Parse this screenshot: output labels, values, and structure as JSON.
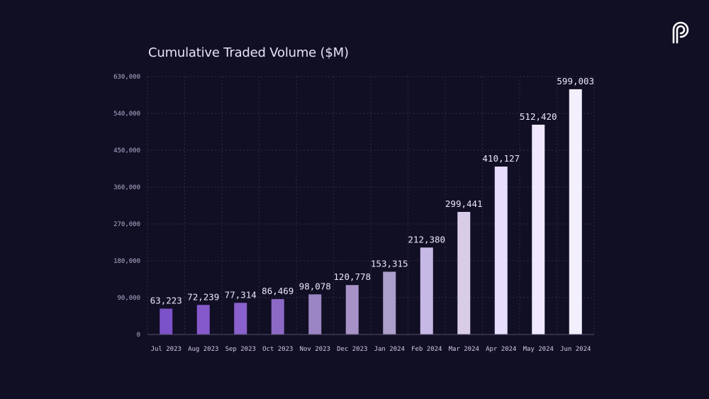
{
  "brand": {
    "logo": "pyth-logo-icon"
  },
  "chart_data": {
    "type": "bar",
    "title": "Cumulative Traded Volume ($M)",
    "xlabel": "",
    "ylabel": "",
    "categories": [
      "Jul 2023",
      "Aug 2023",
      "Sep 2023",
      "Oct 2023",
      "Nov 2023",
      "Dec 2023",
      "Jan 2024",
      "Feb 2024",
      "Mar 2024",
      "Apr 2024",
      "May 2024",
      "Jun 2024"
    ],
    "values": [
      63223,
      72239,
      77314,
      86469,
      98078,
      120778,
      153315,
      212380,
      299441,
      410127,
      512420,
      599003
    ],
    "value_labels": [
      "63,223",
      "72,239",
      "77,314",
      "86,469",
      "98,078",
      "120,778",
      "153,315",
      "212,380",
      "299,441",
      "410,127",
      "512,420",
      "599,003"
    ],
    "ylim": [
      0,
      630000
    ],
    "yticks": [
      0,
      90000,
      180000,
      270000,
      360000,
      450000,
      540000,
      630000
    ],
    "ytick_labels": [
      "0",
      "90,000",
      "180,000",
      "270,000",
      "360,000",
      "450,000",
      "540,000",
      "630,000"
    ],
    "bar_colors": [
      "#7c52c8",
      "#8559cc",
      "#8a61cc",
      "#8d69c6",
      "#9b85c4",
      "#a692c6",
      "#ad9fcb",
      "#c7b9e6",
      "#d8cce8",
      "#e6dcfc",
      "#efe8fe",
      "#f4effd"
    ],
    "grid": true,
    "grid_color": "#2e2b45",
    "legend": "none"
  }
}
